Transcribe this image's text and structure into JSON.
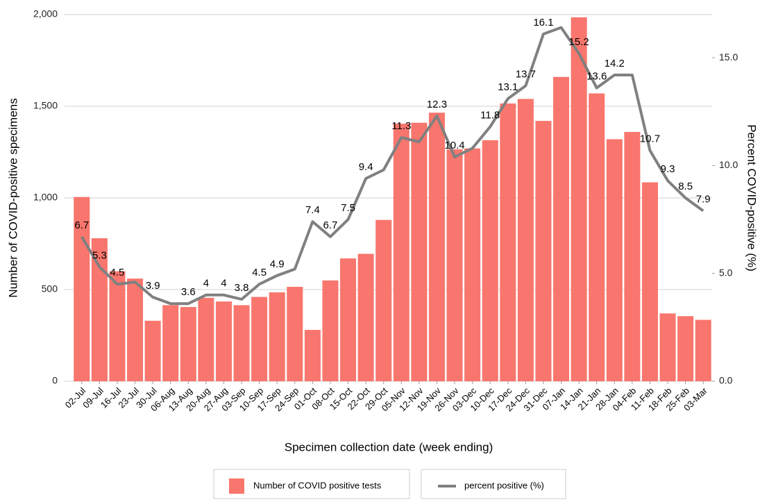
{
  "chart_data": {
    "type": "bar+line",
    "categories": [
      "02-Jul",
      "09-Jul",
      "16-Jul",
      "23-Jul",
      "30-Jul",
      "06-Aug",
      "13-Aug",
      "20-Aug",
      "27-Aug",
      "03-Sep",
      "10-Sep",
      "17-Sep",
      "24-Sep",
      "01-Oct",
      "08-Oct",
      "15-Oct",
      "22-Oct",
      "29-Oct",
      "05-Nov",
      "12-Nov",
      "19-Nov",
      "26-Nov",
      "03-Dec",
      "10-Dec",
      "17-Dec",
      "24-Dec",
      "31-Dec",
      "07-Jan",
      "14-Jan",
      "21-Jan",
      "28-Jan",
      "04-Feb",
      "11-Feb",
      "18-Feb",
      "25-Feb",
      "03-Mar"
    ],
    "xlabel": "Specimen collection date (week ending)",
    "ylabel": "Number of COVID-positive specimens",
    "y2label": "Percent COVID-positive (%)",
    "ylim": [
      0,
      2000
    ],
    "yticks": [
      0,
      500,
      {
        "value": 1000,
        "label": "1,000"
      },
      {
        "value": 1500,
        "label": "1,500"
      },
      {
        "value": 2000,
        "label": "2,000"
      }
    ],
    "y2lim": [
      0,
      17
    ],
    "y2ticks": [
      {
        "value": 0,
        "label": "0.0"
      },
      {
        "value": 5,
        "label": "5.0"
      },
      {
        "value": 10,
        "label": "10.0"
      },
      {
        "value": 15,
        "label": "15.0"
      }
    ],
    "grid": true,
    "legend": "bottom",
    "series": [
      {
        "name": "Number of COVID positive tests",
        "type": "bar",
        "color": "#f8766d",
        "values": [
          1005,
          780,
          600,
          560,
          330,
          415,
          405,
          455,
          435,
          415,
          460,
          485,
          515,
          280,
          550,
          670,
          695,
          880,
          1405,
          1410,
          1465,
          1265,
          1270,
          1315,
          1515,
          1540,
          1420,
          1660,
          1985,
          1570,
          1320,
          1360,
          1085,
          370,
          355,
          335
        ]
      },
      {
        "name": "percent positive (%)",
        "type": "line",
        "axis": "y2",
        "color": "#808080",
        "values": [
          6.7,
          5.3,
          4.5,
          4.6,
          3.9,
          3.6,
          3.6,
          4,
          4,
          3.8,
          4.5,
          4.9,
          5.2,
          7.4,
          6.7,
          7.5,
          9.4,
          9.8,
          11.3,
          11.1,
          12.3,
          10.4,
          10.8,
          11.8,
          13.1,
          13.7,
          16.1,
          16.4,
          15.2,
          13.6,
          14.2,
          14.2,
          10.7,
          9.3,
          8.5,
          7.9
        ],
        "value_labels": [
          "6.7",
          "5.3",
          "4.5",
          null,
          "3.9",
          null,
          "3.6",
          "4",
          "4",
          "3.8",
          "4.5",
          "4.9",
          null,
          "7.4",
          "6.7",
          "7.5",
          "9.4",
          null,
          "11.3",
          null,
          "12.3",
          "10.4",
          null,
          "11.8",
          "13.1",
          "13.7",
          "16.1",
          null,
          "15.2",
          "13.6",
          "14.2",
          null,
          "10.7",
          "9.3",
          "8.5",
          "7.9"
        ]
      }
    ]
  }
}
